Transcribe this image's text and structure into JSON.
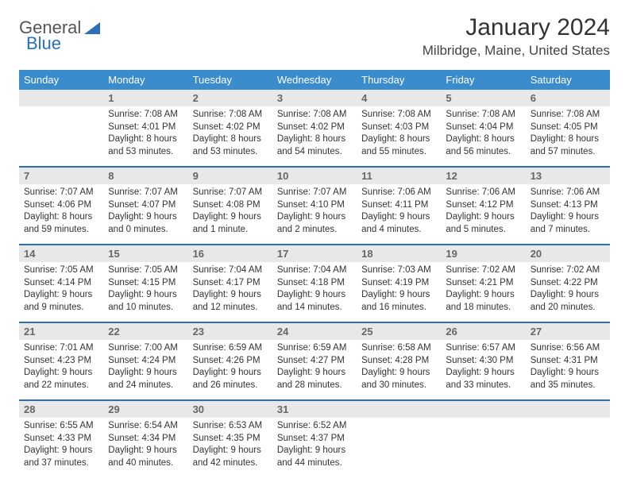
{
  "logo": {
    "text1": "General",
    "text2": "Blue"
  },
  "title": "January 2024",
  "location": "Milbridge, Maine, United States",
  "weekdays": [
    "Sunday",
    "Monday",
    "Tuesday",
    "Wednesday",
    "Thursday",
    "Friday",
    "Saturday"
  ],
  "colors": {
    "header_bg": "#3a8ccc",
    "header_text": "#ffffff",
    "daynum_bg": "#e8e8e8",
    "row_border": "#2970b8",
    "logo_blue": "#2970b8"
  },
  "weeks": [
    [
      null,
      {
        "n": "1",
        "sr": "7:08 AM",
        "ss": "4:01 PM",
        "dl": "8 hours and 53 minutes."
      },
      {
        "n": "2",
        "sr": "7:08 AM",
        "ss": "4:02 PM",
        "dl": "8 hours and 53 minutes."
      },
      {
        "n": "3",
        "sr": "7:08 AM",
        "ss": "4:02 PM",
        "dl": "8 hours and 54 minutes."
      },
      {
        "n": "4",
        "sr": "7:08 AM",
        "ss": "4:03 PM",
        "dl": "8 hours and 55 minutes."
      },
      {
        "n": "5",
        "sr": "7:08 AM",
        "ss": "4:04 PM",
        "dl": "8 hours and 56 minutes."
      },
      {
        "n": "6",
        "sr": "7:08 AM",
        "ss": "4:05 PM",
        "dl": "8 hours and 57 minutes."
      }
    ],
    [
      {
        "n": "7",
        "sr": "7:07 AM",
        "ss": "4:06 PM",
        "dl": "8 hours and 59 minutes."
      },
      {
        "n": "8",
        "sr": "7:07 AM",
        "ss": "4:07 PM",
        "dl": "9 hours and 0 minutes."
      },
      {
        "n": "9",
        "sr": "7:07 AM",
        "ss": "4:08 PM",
        "dl": "9 hours and 1 minute."
      },
      {
        "n": "10",
        "sr": "7:07 AM",
        "ss": "4:10 PM",
        "dl": "9 hours and 2 minutes."
      },
      {
        "n": "11",
        "sr": "7:06 AM",
        "ss": "4:11 PM",
        "dl": "9 hours and 4 minutes."
      },
      {
        "n": "12",
        "sr": "7:06 AM",
        "ss": "4:12 PM",
        "dl": "9 hours and 5 minutes."
      },
      {
        "n": "13",
        "sr": "7:06 AM",
        "ss": "4:13 PM",
        "dl": "9 hours and 7 minutes."
      }
    ],
    [
      {
        "n": "14",
        "sr": "7:05 AM",
        "ss": "4:14 PM",
        "dl": "9 hours and 9 minutes."
      },
      {
        "n": "15",
        "sr": "7:05 AM",
        "ss": "4:15 PM",
        "dl": "9 hours and 10 minutes."
      },
      {
        "n": "16",
        "sr": "7:04 AM",
        "ss": "4:17 PM",
        "dl": "9 hours and 12 minutes."
      },
      {
        "n": "17",
        "sr": "7:04 AM",
        "ss": "4:18 PM",
        "dl": "9 hours and 14 minutes."
      },
      {
        "n": "18",
        "sr": "7:03 AM",
        "ss": "4:19 PM",
        "dl": "9 hours and 16 minutes."
      },
      {
        "n": "19",
        "sr": "7:02 AM",
        "ss": "4:21 PM",
        "dl": "9 hours and 18 minutes."
      },
      {
        "n": "20",
        "sr": "7:02 AM",
        "ss": "4:22 PM",
        "dl": "9 hours and 20 minutes."
      }
    ],
    [
      {
        "n": "21",
        "sr": "7:01 AM",
        "ss": "4:23 PM",
        "dl": "9 hours and 22 minutes."
      },
      {
        "n": "22",
        "sr": "7:00 AM",
        "ss": "4:24 PM",
        "dl": "9 hours and 24 minutes."
      },
      {
        "n": "23",
        "sr": "6:59 AM",
        "ss": "4:26 PM",
        "dl": "9 hours and 26 minutes."
      },
      {
        "n": "24",
        "sr": "6:59 AM",
        "ss": "4:27 PM",
        "dl": "9 hours and 28 minutes."
      },
      {
        "n": "25",
        "sr": "6:58 AM",
        "ss": "4:28 PM",
        "dl": "9 hours and 30 minutes."
      },
      {
        "n": "26",
        "sr": "6:57 AM",
        "ss": "4:30 PM",
        "dl": "9 hours and 33 minutes."
      },
      {
        "n": "27",
        "sr": "6:56 AM",
        "ss": "4:31 PM",
        "dl": "9 hours and 35 minutes."
      }
    ],
    [
      {
        "n": "28",
        "sr": "6:55 AM",
        "ss": "4:33 PM",
        "dl": "9 hours and 37 minutes."
      },
      {
        "n": "29",
        "sr": "6:54 AM",
        "ss": "4:34 PM",
        "dl": "9 hours and 40 minutes."
      },
      {
        "n": "30",
        "sr": "6:53 AM",
        "ss": "4:35 PM",
        "dl": "9 hours and 42 minutes."
      },
      {
        "n": "31",
        "sr": "6:52 AM",
        "ss": "4:37 PM",
        "dl": "9 hours and 44 minutes."
      },
      null,
      null,
      null
    ]
  ],
  "labels": {
    "sunrise": "Sunrise:",
    "sunset": "Sunset:",
    "daylight": "Daylight:"
  }
}
